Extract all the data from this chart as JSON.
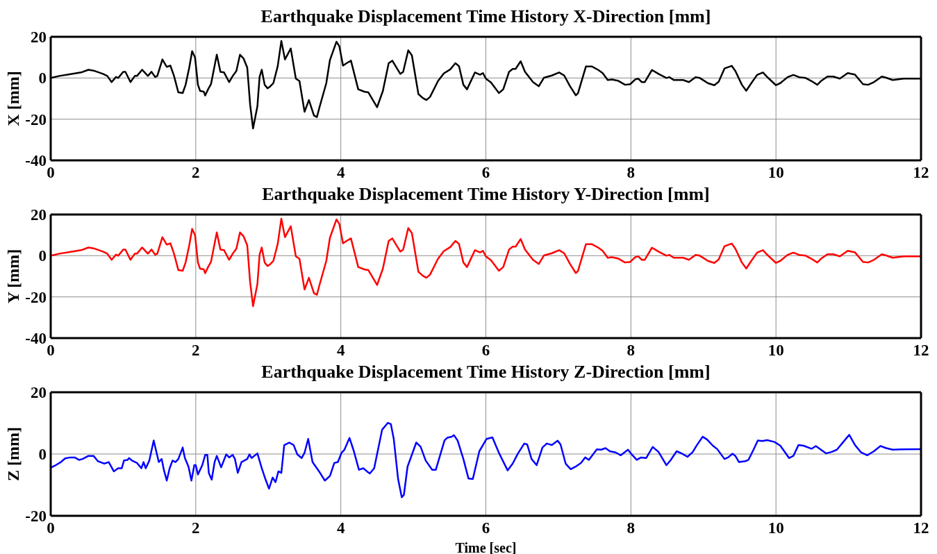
{
  "chart_data": [
    {
      "type": "line",
      "title": "Earthquake Displacement Time History X-Direction [mm]",
      "ylabel": "X [mm]",
      "xlim": [
        0,
        12
      ],
      "xticks": [
        0,
        2,
        4,
        6,
        8,
        10,
        12
      ],
      "ylim": [
        -40,
        20
      ],
      "yticks": [
        -40,
        -20,
        0,
        20
      ],
      "grid": true,
      "series": [
        {
          "color": "#000000",
          "x": [
            0,
            0.12,
            0.29,
            0.42,
            0.52,
            0.59,
            0.72,
            0.78,
            0.84,
            0.9,
            0.93,
            1.0,
            1.03,
            1.1,
            1.16,
            1.19,
            1.26,
            1.34,
            1.39,
            1.44,
            1.47,
            1.54,
            1.6,
            1.65,
            1.7,
            1.76,
            1.82,
            1.86,
            1.91,
            1.95,
            1.99,
            2.03,
            2.06,
            2.11,
            2.13,
            2.17,
            2.21,
            2.29,
            2.34,
            2.39,
            2.46,
            2.51,
            2.56,
            2.61,
            2.66,
            2.71,
            2.75,
            2.79,
            2.85,
            2.88,
            2.91,
            2.95,
            2.99,
            3.03,
            3.07,
            3.13,
            3.18,
            3.23,
            3.31,
            3.38,
            3.43,
            3.5,
            3.56,
            3.63,
            3.67,
            3.71,
            3.8,
            3.85,
            3.94,
            3.98,
            4.03,
            4.08,
            4.14,
            4.24,
            4.33,
            4.38,
            4.5,
            4.58,
            4.66,
            4.71,
            4.82,
            4.86,
            4.93,
            4.98,
            5.07,
            5.13,
            5.18,
            5.23,
            5.34,
            5.42,
            5.51,
            5.58,
            5.63,
            5.69,
            5.74,
            5.85,
            5.92,
            5.96,
            6.0,
            6.07,
            6.18,
            6.24,
            6.32,
            6.37,
            6.41,
            6.48,
            6.54,
            6.65,
            6.73,
            6.8,
            6.91,
            7.01,
            7.08,
            7.16,
            7.24,
            7.27,
            7.38,
            7.46,
            7.55,
            7.61,
            7.68,
            7.74,
            7.82,
            7.92,
            7.99,
            8.06,
            8.1,
            8.15,
            8.19,
            8.29,
            8.38,
            8.49,
            8.53,
            8.59,
            8.72,
            8.8,
            8.89,
            8.95,
            9.06,
            9.15,
            9.21,
            9.29,
            9.39,
            9.44,
            9.53,
            9.59,
            9.66,
            9.74,
            9.82,
            9.89,
            10.0,
            10.06,
            10.16,
            10.24,
            10.32,
            10.41,
            10.49,
            10.57,
            10.62,
            10.71,
            10.79,
            10.88,
            10.99,
            11.09,
            11.2,
            11.27,
            11.35,
            11.46,
            11.52,
            11.61,
            11.76,
            12.0
          ],
          "values": [
            0,
            1,
            2,
            2.7,
            4,
            3.6,
            2,
            1,
            -2,
            0.5,
            0,
            3,
            3,
            -2,
            1,
            1,
            4,
            1,
            3,
            0.5,
            1,
            9,
            5.4,
            6,
            1,
            -7,
            -7.3,
            -3.3,
            5,
            13,
            10,
            -3.3,
            -6.3,
            -6.6,
            -8.5,
            -5.5,
            -3,
            11.3,
            3,
            2.7,
            -2,
            1,
            3.4,
            11.3,
            9.4,
            5,
            -13,
            -24.5,
            -13.7,
            0.5,
            4,
            -3.3,
            -5,
            -4,
            -2.5,
            5.7,
            18,
            9,
            14.3,
            -0.3,
            -1.5,
            -16.4,
            -10.7,
            -18.2,
            -19,
            -13.7,
            -2.5,
            8.7,
            17.6,
            15.4,
            6,
            7.2,
            8.4,
            -5.5,
            -6.7,
            -7,
            -14.2,
            -6.3,
            7.2,
            8.4,
            2,
            3,
            13.4,
            11,
            -7.8,
            -9.7,
            -10.7,
            -9.2,
            -1.5,
            2.2,
            4.2,
            7.2,
            5.7,
            -3.3,
            -5.5,
            2.7,
            1.6,
            2.4,
            -0.3,
            -2.2,
            -7.3,
            -5.5,
            3,
            4.4,
            4.4,
            8.1,
            3,
            -2,
            -4,
            0.1,
            1.2,
            2.7,
            1.2,
            -4,
            -8.4,
            -7.4,
            5.6,
            5.6,
            3.9,
            2.4,
            -1,
            -0.7,
            -1.3,
            -3.3,
            -3,
            -0.7,
            -0.3,
            -2,
            -2,
            3.9,
            2,
            0,
            0.4,
            -1,
            -1,
            -2,
            0.4,
            0,
            -2.5,
            -3.5,
            -1.8,
            4.6,
            5.9,
            3.4,
            -3.3,
            -6.2,
            -2.5,
            1.5,
            2.7,
            0.1,
            -3.5,
            -2.5,
            0.4,
            1.5,
            0.4,
            0,
            -1.5,
            -3.3,
            -1.5,
            0.7,
            0.7,
            -0.3,
            2.4,
            1.6,
            -3,
            -3.3,
            -2,
            0.7,
            0.1,
            -1,
            -0.3,
            -0.3
          ]
        }
      ]
    },
    {
      "type": "line",
      "title": "Earthquake Displacement Time History Y-Direction [mm]",
      "ylabel": "Y [mm]",
      "xlim": [
        0,
        12
      ],
      "xticks": [
        0,
        2,
        4,
        6,
        8,
        10,
        12
      ],
      "ylim": [
        -40,
        20
      ],
      "yticks": [
        -40,
        -20,
        0,
        20
      ],
      "grid": true,
      "series": [
        {
          "color": "#ff0000",
          "x": [
            0,
            0.12,
            0.29,
            0.42,
            0.52,
            0.59,
            0.72,
            0.78,
            0.84,
            0.9,
            0.93,
            1.0,
            1.03,
            1.1,
            1.16,
            1.19,
            1.26,
            1.34,
            1.39,
            1.44,
            1.47,
            1.54,
            1.6,
            1.65,
            1.7,
            1.76,
            1.82,
            1.86,
            1.91,
            1.95,
            1.99,
            2.03,
            2.06,
            2.11,
            2.13,
            2.17,
            2.21,
            2.29,
            2.34,
            2.39,
            2.46,
            2.51,
            2.56,
            2.61,
            2.66,
            2.71,
            2.75,
            2.79,
            2.85,
            2.88,
            2.91,
            2.95,
            2.99,
            3.03,
            3.07,
            3.13,
            3.18,
            3.23,
            3.31,
            3.38,
            3.43,
            3.5,
            3.56,
            3.63,
            3.67,
            3.71,
            3.8,
            3.85,
            3.94,
            3.98,
            4.03,
            4.08,
            4.14,
            4.24,
            4.33,
            4.38,
            4.5,
            4.58,
            4.66,
            4.71,
            4.82,
            4.86,
            4.93,
            4.98,
            5.07,
            5.13,
            5.18,
            5.23,
            5.34,
            5.42,
            5.51,
            5.58,
            5.63,
            5.69,
            5.74,
            5.85,
            5.92,
            5.96,
            6.0,
            6.07,
            6.18,
            6.24,
            6.32,
            6.37,
            6.41,
            6.48,
            6.54,
            6.65,
            6.73,
            6.8,
            6.91,
            7.01,
            7.08,
            7.16,
            7.24,
            7.27,
            7.38,
            7.46,
            7.55,
            7.61,
            7.68,
            7.74,
            7.82,
            7.92,
            7.99,
            8.06,
            8.1,
            8.15,
            8.19,
            8.29,
            8.38,
            8.49,
            8.53,
            8.59,
            8.72,
            8.8,
            8.89,
            8.95,
            9.06,
            9.15,
            9.21,
            9.29,
            9.39,
            9.44,
            9.53,
            9.59,
            9.66,
            9.74,
            9.82,
            9.89,
            10.0,
            10.06,
            10.16,
            10.24,
            10.32,
            10.41,
            10.49,
            10.57,
            10.62,
            10.71,
            10.79,
            10.88,
            10.99,
            11.09,
            11.2,
            11.27,
            11.35,
            11.46,
            11.52,
            11.61,
            11.76,
            12.0
          ],
          "values": [
            0,
            1,
            2,
            2.7,
            4,
            3.6,
            2,
            1,
            -2,
            0.5,
            0,
            3,
            3,
            -2,
            1,
            1,
            4,
            1,
            3,
            0.5,
            1,
            9,
            5.4,
            6,
            1,
            -7,
            -7.3,
            -3.3,
            5,
            13,
            10,
            -3.3,
            -6.3,
            -6.6,
            -8.5,
            -5.5,
            -3,
            11.3,
            3,
            2.7,
            -2,
            1,
            3.4,
            11.3,
            9.4,
            5,
            -13,
            -24.5,
            -13.7,
            0.5,
            4,
            -3.3,
            -5,
            -4,
            -2.5,
            5.7,
            18,
            9,
            14.3,
            -0.3,
            -1.5,
            -16.4,
            -10.7,
            -18.2,
            -19,
            -13.7,
            -2.5,
            8.7,
            17.6,
            15.4,
            6,
            7.2,
            8.4,
            -5.5,
            -6.7,
            -7,
            -14.2,
            -6.3,
            7.2,
            8.4,
            2,
            3,
            13.4,
            11,
            -7.8,
            -9.7,
            -10.7,
            -9.2,
            -1.5,
            2.2,
            4.2,
            7.2,
            5.7,
            -3.3,
            -5.5,
            2.7,
            1.6,
            2.4,
            -0.3,
            -2.2,
            -7.3,
            -5.5,
            3,
            4.4,
            4.4,
            8.1,
            3,
            -2,
            -4,
            0.1,
            1.2,
            2.7,
            1.2,
            -4,
            -8.4,
            -7.4,
            5.6,
            5.6,
            3.9,
            2.4,
            -1,
            -0.7,
            -1.3,
            -3.3,
            -3,
            -0.7,
            -0.3,
            -2,
            -2,
            3.9,
            2,
            0,
            0.4,
            -1,
            -1,
            -2,
            0.4,
            0,
            -2.5,
            -3.5,
            -1.8,
            4.6,
            5.9,
            3.4,
            -3.3,
            -6.2,
            -2.5,
            1.5,
            2.7,
            0.1,
            -3.5,
            -2.5,
            0.4,
            1.5,
            0.4,
            0,
            -1.5,
            -3.3,
            -1.5,
            0.7,
            0.7,
            -0.3,
            2.4,
            1.6,
            -3,
            -3.3,
            -2,
            0.7,
            0.1,
            -1,
            -0.3,
            -0.3
          ]
        }
      ]
    },
    {
      "type": "line",
      "title": "Earthquake Displacement Time History Z-Direction [mm]",
      "xlabel": "Time [sec]",
      "ylabel": "Z [mm]",
      "xlim": [
        0,
        12
      ],
      "xticks": [
        0,
        2,
        4,
        6,
        8,
        10,
        12
      ],
      "ylim": [
        -20,
        20
      ],
      "yticks": [
        -20,
        0,
        20
      ],
      "grid": true,
      "series": [
        {
          "color": "#0000ff",
          "x": [
            0,
            0.07,
            0.14,
            0.2,
            0.27,
            0.33,
            0.39,
            0.44,
            0.52,
            0.59,
            0.65,
            0.74,
            0.8,
            0.87,
            0.93,
            0.98,
            1.01,
            1.06,
            1.08,
            1.12,
            1.19,
            1.25,
            1.28,
            1.31,
            1.36,
            1.42,
            1.46,
            1.49,
            1.53,
            1.56,
            1.6,
            1.64,
            1.68,
            1.72,
            1.76,
            1.82,
            1.85,
            1.9,
            1.94,
            1.98,
            2.0,
            2.03,
            2.09,
            2.13,
            2.16,
            2.18,
            2.22,
            2.26,
            2.29,
            2.35,
            2.42,
            2.46,
            2.51,
            2.54,
            2.58,
            2.63,
            2.71,
            2.74,
            2.77,
            2.85,
            2.91,
            2.96,
            3.01,
            3.06,
            3.1,
            3.14,
            3.18,
            3.22,
            3.29,
            3.35,
            3.4,
            3.46,
            3.5,
            3.55,
            3.61,
            3.7,
            3.78,
            3.85,
            3.91,
            3.96,
            4.01,
            4.05,
            4.12,
            4.18,
            4.25,
            4.31,
            4.36,
            4.4,
            4.46,
            4.57,
            4.65,
            4.69,
            4.73,
            4.79,
            4.84,
            4.87,
            4.92,
            5.04,
            5.1,
            5.17,
            5.26,
            5.31,
            5.43,
            5.47,
            5.53,
            5.56,
            5.61,
            5.69,
            5.76,
            5.82,
            5.91,
            6.01,
            6.09,
            6.18,
            6.3,
            6.37,
            6.44,
            6.53,
            6.57,
            6.63,
            6.7,
            6.78,
            6.84,
            6.91,
            6.99,
            7.03,
            7.1,
            7.17,
            7.25,
            7.31,
            7.37,
            7.42,
            7.53,
            7.59,
            7.65,
            7.71,
            7.79,
            7.86,
            7.96,
            8.01,
            8.08,
            8.14,
            8.21,
            8.3,
            8.38,
            8.49,
            8.55,
            8.63,
            8.7,
            8.78,
            8.85,
            8.91,
            8.99,
            9.05,
            9.13,
            9.19,
            9.29,
            9.34,
            9.4,
            9.44,
            9.49,
            9.58,
            9.62,
            9.69,
            9.75,
            9.81,
            9.88,
            9.98,
            10.06,
            10.13,
            10.18,
            10.24,
            10.31,
            10.38,
            10.49,
            10.55,
            10.62,
            10.69,
            10.77,
            10.84,
            10.91,
            11.01,
            11.09,
            11.17,
            11.26,
            11.35,
            11.44,
            11.52,
            11.61,
            11.73,
            12.0
          ],
          "values": [
            -4.4,
            -3.6,
            -2.6,
            -1.4,
            -1.1,
            -1.1,
            -1.9,
            -1.6,
            -0.6,
            -0.6,
            -2.3,
            -3.1,
            -2.6,
            -5.6,
            -4.6,
            -4.6,
            -2.1,
            -1.9,
            -1.3,
            -2.1,
            -2.9,
            -4.6,
            -2.6,
            -4.6,
            -2.1,
            4.4,
            0.4,
            -2.6,
            -1.6,
            -5.1,
            -8.6,
            -4.6,
            -2.1,
            -2.6,
            -1.6,
            2.1,
            -1.3,
            -4.1,
            -8.6,
            -3.6,
            -3.6,
            -6.6,
            -3.6,
            -0.3,
            -0.3,
            -6.1,
            -8.3,
            -2.6,
            -0.6,
            -4.3,
            -0.1,
            -1.1,
            -0.3,
            -1.6,
            -6.1,
            -2.6,
            -1.6,
            -0.1,
            -1.3,
            0.2,
            -4.6,
            -8.1,
            -11.2,
            -7.6,
            -9.1,
            -5.6,
            -6.1,
            2.9,
            3.7,
            2.9,
            -0.1,
            -1.3,
            0.4,
            4.9,
            -2.6,
            -5.6,
            -8.6,
            -7.1,
            -2.9,
            -2.6,
            0.4,
            1.4,
            5.2,
            0.9,
            -5.1,
            -4.6,
            -5.6,
            -6.3,
            -4.6,
            7.9,
            10.1,
            9.7,
            4.9,
            -8.1,
            -14,
            -13.2,
            -4.1,
            3.7,
            2.4,
            -2.1,
            -5.1,
            -5.1,
            4.4,
            5.3,
            5.6,
            6.1,
            4.4,
            -1.6,
            -7.9,
            -8.1,
            0.9,
            4.9,
            5.4,
            0.4,
            -5.3,
            -3.1,
            0.1,
            3.4,
            3.1,
            -1.6,
            -3.6,
            2.1,
            3.4,
            2.9,
            4.3,
            3.1,
            -3.1,
            -4.9,
            -3.9,
            -2.9,
            -1.1,
            -1.9,
            1.5,
            1.4,
            1.9,
            0.9,
            0.5,
            -0.4,
            1.4,
            -0.1,
            -1.9,
            -1.1,
            -1.3,
            2.3,
            0.7,
            -3.6,
            -1.9,
            0.9,
            0.2,
            -0.9,
            0.6,
            2.9,
            5.6,
            4.7,
            2.7,
            1.6,
            -1.6,
            -1.1,
            0.1,
            -0.6,
            -2.6,
            -2.3,
            -1.9,
            1.4,
            4.4,
            4.2,
            4.5,
            3.9,
            2.7,
            0.4,
            -1.3,
            -0.6,
            2.9,
            2.7,
            1.7,
            2.6,
            1.4,
            0.2,
            0.7,
            1.4,
            3.4,
            6.2,
            2.9,
            0.6,
            -0.4,
            0.9,
            2.6,
            1.9,
            1.4,
            1.5,
            1.6
          ]
        }
      ]
    }
  ]
}
